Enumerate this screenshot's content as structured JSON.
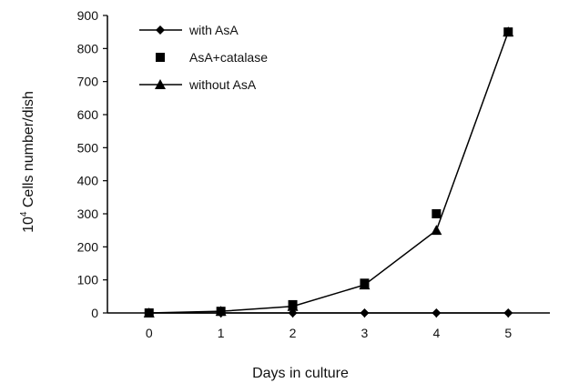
{
  "chart_data": {
    "type": "line",
    "xlabel": "Days in culture",
    "ylabel_base": "10",
    "ylabel_exp": "4",
    "ylabel_rest": " Cells number/dish",
    "x": [
      0,
      1,
      2,
      3,
      4,
      5
    ],
    "xticks": [
      "0",
      "1",
      "2",
      "3",
      "4",
      "5"
    ],
    "yticks": [
      "0",
      "100",
      "200",
      "300",
      "400",
      "500",
      "600",
      "700",
      "800",
      "900"
    ],
    "ylim": [
      0,
      900
    ],
    "grid": false,
    "legend_position": "top-left",
    "series": [
      {
        "name": "with AsA",
        "marker": "diamond",
        "line": true,
        "values": [
          0,
          0,
          0,
          0,
          0,
          0
        ]
      },
      {
        "name": "AsA+catalase",
        "marker": "square",
        "line": false,
        "values": [
          0,
          5,
          25,
          90,
          300,
          850
        ]
      },
      {
        "name": "without AsA",
        "marker": "triangle",
        "line": true,
        "values": [
          0,
          5,
          20,
          85,
          250,
          850
        ]
      }
    ]
  }
}
